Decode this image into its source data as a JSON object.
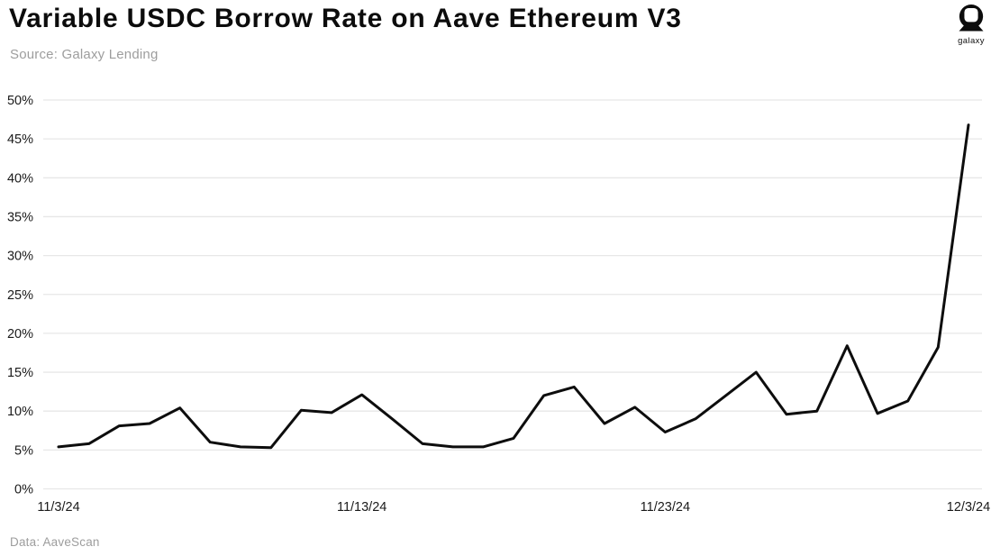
{
  "header": {
    "title": "Variable USDC Borrow Rate on Aave Ethereum V3",
    "source": "Source: Galaxy Lending"
  },
  "logo": {
    "label": "galaxy"
  },
  "footer": {
    "credit": "Data: AaveScan"
  },
  "chart_data": {
    "type": "line",
    "title": "Variable USDC Borrow Rate on Aave Ethereum V3",
    "subtitle": "Source: Galaxy Lending",
    "data_credit": "Data: AaveScan",
    "x": [
      "11/3/24",
      "11/4/24",
      "11/5/24",
      "11/6/24",
      "11/7/24",
      "11/8/24",
      "11/9/24",
      "11/10/24",
      "11/11/24",
      "11/12/24",
      "11/13/24",
      "11/14/24",
      "11/15/24",
      "11/16/24",
      "11/17/24",
      "11/18/24",
      "11/19/24",
      "11/20/24",
      "11/21/24",
      "11/22/24",
      "11/23/24",
      "11/24/24",
      "11/25/24",
      "11/26/24",
      "11/27/24",
      "11/28/24",
      "11/29/24",
      "11/30/24",
      "12/1/24",
      "12/2/24",
      "12/3/24"
    ],
    "series": [
      {
        "name": "Variable USDC Borrow Rate",
        "values": [
          5.4,
          5.8,
          8.1,
          8.4,
          10.4,
          6.0,
          5.4,
          5.3,
          10.1,
          9.8,
          12.1,
          9.0,
          5.8,
          5.4,
          5.4,
          6.5,
          12.0,
          13.1,
          8.4,
          10.5,
          7.3,
          9.0,
          12.0,
          15.0,
          9.6,
          10.0,
          18.4,
          9.7,
          11.3,
          18.2,
          46.8
        ]
      }
    ],
    "x_tick_labels": [
      "11/3/24",
      "11/13/24",
      "11/23/24",
      "12/3/24"
    ],
    "x_tick_indices": [
      0,
      10,
      20,
      30
    ],
    "y_ticks": [
      0,
      5,
      10,
      15,
      20,
      25,
      30,
      35,
      40,
      45,
      50
    ],
    "y_tick_suffix": "%",
    "xlabel": "",
    "ylabel": "",
    "ylim": [
      0,
      50
    ],
    "grid": true,
    "legend": false,
    "colors": {
      "line": "#0d0d0d",
      "grid": "#e7e7e7",
      "axis_text": "#1a1a1a"
    }
  }
}
